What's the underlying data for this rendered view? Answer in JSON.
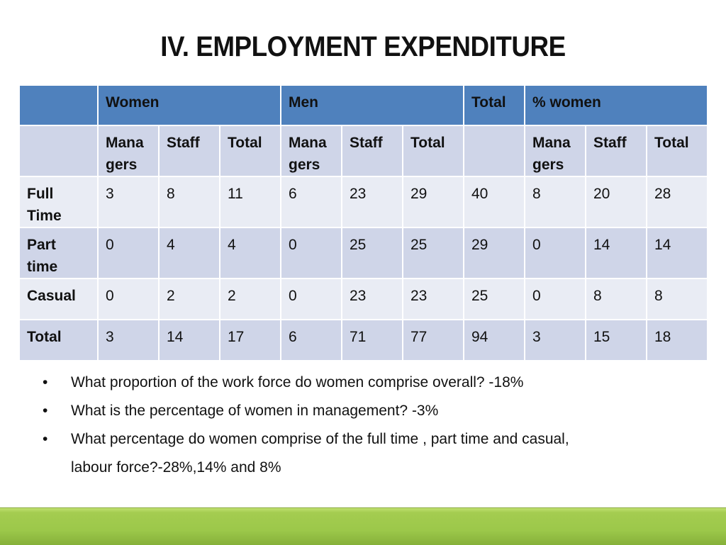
{
  "title": "IV. EMPLOYMENT EXPENDITURE",
  "table": {
    "group_headers": [
      "",
      "Women",
      "Men",
      "Total",
      "% women"
    ],
    "sub_headers": [
      "",
      "Mana gers",
      "Staff",
      "Total",
      "Mana gers",
      "Staff",
      "Total",
      "",
      "Mana gers",
      "Staff",
      "Total"
    ],
    "rows": [
      {
        "label": "Full Time",
        "values": [
          "3",
          "8",
          "11",
          "6",
          "23",
          "29",
          "40",
          "8",
          "20",
          "28"
        ]
      },
      {
        "label": "Part time",
        "values": [
          "0",
          "4",
          "4",
          "0",
          "25",
          "25",
          "29",
          "0",
          "14",
          "14"
        ]
      },
      {
        "label": "Casual",
        "values": [
          "0",
          "2",
          "2",
          "0",
          "23",
          "23",
          "25",
          "0",
          "8",
          "8"
        ]
      },
      {
        "label": "Total",
        "values": [
          "3",
          "14",
          "17",
          "6",
          "71",
          "77",
          "94",
          "3",
          "15",
          "18"
        ]
      }
    ]
  },
  "bullets": [
    "What proportion of the work force do women comprise overall? -18%",
    "What is the percentage of women in management? -3%",
    "What percentage do women comprise of the full time , part time and casual,"
  ],
  "bullet_continuation": "labour force?-28%,14% and 8%",
  "bullet_char": "•"
}
